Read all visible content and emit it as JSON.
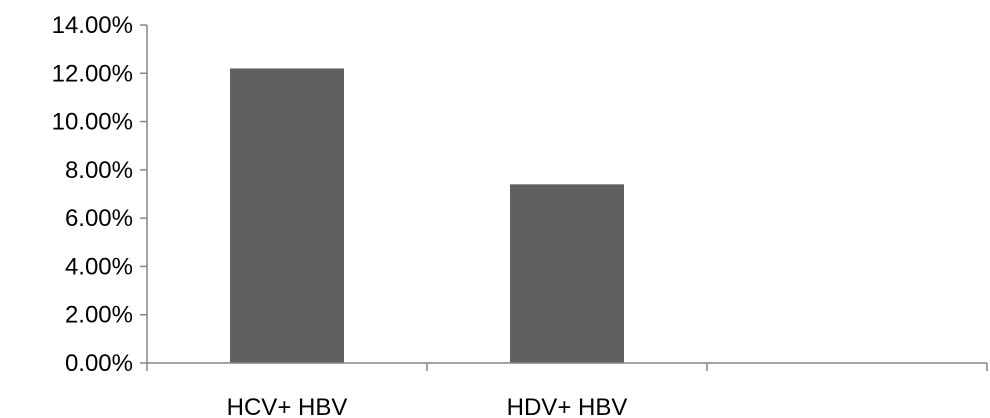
{
  "chart_data": {
    "type": "bar",
    "categories": [
      "HCV+ HBV",
      "HDV+ HBV",
      ""
    ],
    "values": [
      0.122,
      0.074,
      null
    ],
    "ylim": [
      0,
      0.14
    ],
    "yticks": [
      0,
      0.02,
      0.04,
      0.06,
      0.08,
      0.1,
      0.12,
      0.14
    ],
    "ytick_labels": [
      "0.00%",
      "2.00%",
      "4.00%",
      "6.00%",
      "8.00%",
      "10.00%",
      "12.00%",
      "14.00%"
    ],
    "bar_color": "#606060",
    "axis_color": "#868686",
    "grid": false,
    "legend": false
  }
}
